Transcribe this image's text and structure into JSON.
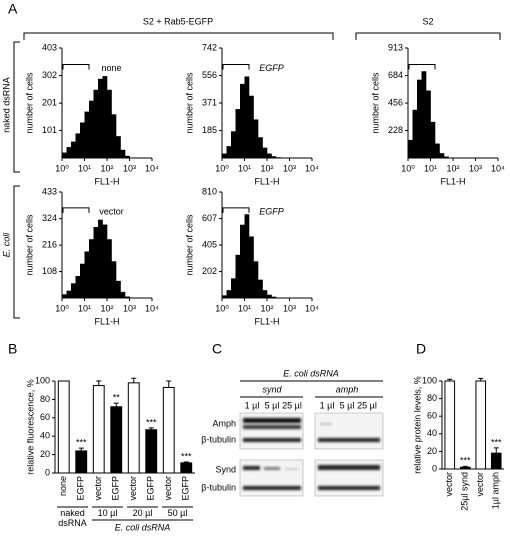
{
  "panel_labels": [
    "A",
    "B",
    "C",
    "D"
  ],
  "panel_a": {
    "header_left": "S2 + Rab5-EGFP",
    "header_right": "S2",
    "row_labels": [
      "naked dsRNA",
      "E. coli"
    ]
  },
  "blot": {
    "title": "E. coli dsRNA",
    "groups": [
      "synd",
      "amph"
    ],
    "lanes": [
      "1 µl",
      "5 µl",
      "25 µl",
      "1 µl",
      "5 µl",
      "25 µl"
    ],
    "rows": [
      "Amph",
      "β-tubulin",
      "Synd",
      "β-tubulin"
    ]
  },
  "chart_data": [
    {
      "type": "histogram",
      "label": "none",
      "xlabel": "FL1-H",
      "ylabel": "number of cells",
      "color": "#000000",
      "log_x": true,
      "bins": [
        1,
        1.585,
        2.512,
        3.981,
        6.31,
        10,
        15.85,
        25.12,
        39.81,
        63.1,
        100,
        158.5,
        251.2,
        398.1,
        631,
        1000
      ],
      "values": [
        20,
        40,
        60,
        90,
        130,
        170,
        210,
        250,
        290,
        300,
        250,
        160,
        80,
        30,
        8
      ],
      "xlim": [
        1,
        10000
      ],
      "xticks": [
        {
          "value": 1,
          "label": "10⁰"
        },
        {
          "value": 10,
          "label": "10¹"
        },
        {
          "value": 100,
          "label": "10²"
        },
        {
          "value": 1000,
          "label": "10³"
        },
        {
          "value": 10000,
          "label": "10⁴"
        }
      ],
      "ylim": [
        0,
        403
      ],
      "yticks": [
        101,
        201,
        302,
        403
      ]
    },
    {
      "type": "histogram",
      "label": "EGFP",
      "label_style": "italic",
      "xlabel": "FL1-H",
      "ylabel": "number of cells",
      "color": "#000000",
      "log_x": true,
      "bins": [
        1,
        1.585,
        2.512,
        3.981,
        6.31,
        10,
        15.85,
        25.12,
        39.81,
        63.1,
        100,
        158.5,
        251.2,
        398.1,
        631,
        1000
      ],
      "values": [
        30,
        80,
        180,
        330,
        500,
        550,
        420,
        260,
        140,
        70,
        30,
        12,
        5,
        2,
        0
      ],
      "xlim": [
        1,
        10000
      ],
      "xticks": [
        {
          "value": 1,
          "label": "10⁰"
        },
        {
          "value": 10,
          "label": "10¹"
        },
        {
          "value": 100,
          "label": "10²"
        },
        {
          "value": 1000,
          "label": "10³"
        },
        {
          "value": 10000,
          "label": "10⁴"
        }
      ],
      "ylim": [
        0,
        742
      ],
      "yticks": [
        185,
        371,
        556,
        742
      ]
    },
    {
      "type": "histogram",
      "xlabel": "FL1-H",
      "ylabel": "number of cells",
      "color": "#000000",
      "log_x": true,
      "bins": [
        1,
        1.585,
        2.512,
        3.981,
        6.31,
        10,
        15.85,
        25.12,
        39.81,
        63.1,
        100,
        158.5,
        251.2,
        398.1,
        631,
        1000
      ],
      "values": [
        150,
        400,
        650,
        720,
        560,
        300,
        120,
        40,
        12,
        4,
        0,
        0,
        0,
        0,
        0
      ],
      "xlim": [
        1,
        10000
      ],
      "xticks": [
        {
          "value": 1,
          "label": "10⁰"
        },
        {
          "value": 10,
          "label": "10¹"
        },
        {
          "value": 100,
          "label": "10²"
        },
        {
          "value": 1000,
          "label": "10³"
        },
        {
          "value": 10000,
          "label": "10⁴"
        }
      ],
      "ylim": [
        0,
        913
      ],
      "yticks": [
        228,
        456,
        684,
        913
      ]
    },
    {
      "type": "histogram",
      "label": "vector",
      "xlabel": "FL1-H",
      "ylabel": "number of cells",
      "color": "#000000",
      "log_x": true,
      "bins": [
        1,
        1.585,
        2.512,
        3.981,
        6.31,
        10,
        15.85,
        25.12,
        39.81,
        63.1,
        100,
        158.5,
        251.2,
        398.1,
        631,
        1000
      ],
      "values": [
        15,
        30,
        60,
        90,
        140,
        190,
        240,
        290,
        320,
        300,
        240,
        150,
        70,
        25,
        6
      ],
      "xlim": [
        1,
        10000
      ],
      "xticks": [
        {
          "value": 1,
          "label": "10⁰"
        },
        {
          "value": 10,
          "label": "10¹"
        },
        {
          "value": 100,
          "label": "10²"
        },
        {
          "value": 1000,
          "label": "10³"
        },
        {
          "value": 10000,
          "label": "10⁴"
        }
      ],
      "ylim": [
        0,
        433
      ],
      "yticks": [
        108,
        216,
        324,
        433
      ]
    },
    {
      "type": "histogram",
      "label": "EGFP",
      "label_style": "italic",
      "xlabel": "FL1-H",
      "ylabel": "number of cells",
      "color": "#000000",
      "log_x": true,
      "bins": [
        1,
        1.585,
        2.512,
        3.981,
        6.31,
        10,
        15.85,
        25.12,
        39.81,
        63.1,
        100,
        158.5,
        251.2,
        398.1,
        631,
        1000
      ],
      "values": [
        20,
        60,
        150,
        330,
        560,
        640,
        470,
        280,
        140,
        60,
        25,
        10,
        4,
        1,
        0
      ],
      "xlim": [
        1,
        10000
      ],
      "xticks": [
        {
          "value": 1,
          "label": "10⁰"
        },
        {
          "value": 10,
          "label": "10¹"
        },
        {
          "value": 100,
          "label": "10²"
        },
        {
          "value": 1000,
          "label": "10³"
        },
        {
          "value": 10000,
          "label": "10⁴"
        }
      ],
      "ylim": [
        0,
        810
      ],
      "yticks": [
        202,
        405,
        607,
        810
      ]
    },
    {
      "type": "bar",
      "ylabel": "relative fluorescence, %",
      "categories": [
        "none",
        "EGFP",
        "vector",
        "EGFP",
        "vector",
        "EGFP",
        "vector",
        "EGFP"
      ],
      "values": [
        100,
        24,
        95,
        72,
        98,
        47,
        93,
        11
      ],
      "errors": [
        0,
        3,
        5,
        4,
        5,
        2,
        7,
        1
      ],
      "colors": [
        "#ffffff",
        "#000000",
        "#ffffff",
        "#000000",
        "#ffffff",
        "#000000",
        "#ffffff",
        "#000000"
      ],
      "significance": [
        null,
        "***",
        null,
        "**",
        null,
        "***",
        null,
        "***"
      ],
      "group_labels": [
        "naked dsRNA",
        "10 µl",
        "20 µl",
        "50 µl"
      ],
      "group_title": "E. coli dsRNA",
      "ylim": [
        0,
        100
      ],
      "yticks": [
        0,
        20,
        40,
        60,
        80,
        100
      ]
    },
    {
      "type": "bar",
      "ylabel": "relative protein levels, %",
      "categories": [
        "vector",
        "25µl synd",
        "vector",
        "1µl amph"
      ],
      "values": [
        100,
        2,
        100,
        18
      ],
      "errors": [
        2,
        1,
        3,
        6
      ],
      "colors": [
        "#ffffff",
        "#000000",
        "#ffffff",
        "#000000"
      ],
      "significance": [
        null,
        "***",
        null,
        "***"
      ],
      "ylim": [
        0,
        100
      ],
      "yticks": [
        0,
        20,
        40,
        60,
        80,
        100
      ]
    }
  ]
}
